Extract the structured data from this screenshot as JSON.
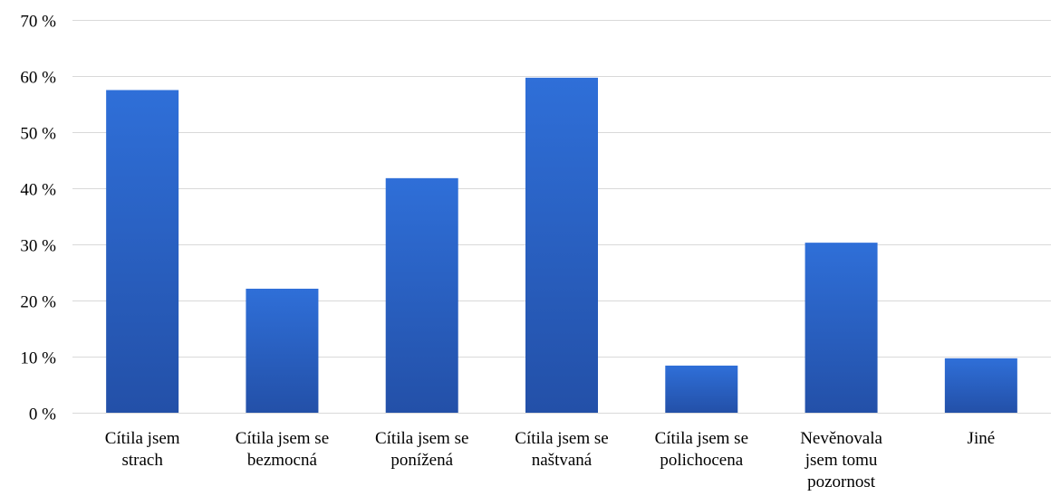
{
  "chart_data": {
    "type": "bar",
    "title": "",
    "xlabel": "",
    "ylabel": "",
    "categories": [
      [
        "Cítila jsem",
        "strach"
      ],
      [
        "Cítila jsem se",
        "bezmocná"
      ],
      [
        "Cítila jsem se",
        "ponížená"
      ],
      [
        "Cítila jsem se",
        "naštvaná"
      ],
      [
        "Cítila jsem se",
        "polichocena"
      ],
      [
        "Nevěnovala",
        "jsem tomu",
        "pozornost"
      ],
      [
        "Jiné"
      ]
    ],
    "values": [
      57.5,
      22.1,
      41.8,
      59.7,
      8.4,
      30.3,
      9.7
    ],
    "ylim": [
      0,
      70
    ],
    "yticks": [
      0,
      10,
      20,
      30,
      40,
      50,
      60,
      70
    ],
    "ytick_labels": [
      "0 %",
      "10 %",
      "20 %",
      "30 %",
      "40 %",
      "50 %",
      "60 %",
      "70 %"
    ],
    "grid": true,
    "legend": "none",
    "colors": {
      "bar_top": "#2f6fd8",
      "bar_bottom": "#2350a8",
      "grid": "#d9d9d9"
    }
  }
}
